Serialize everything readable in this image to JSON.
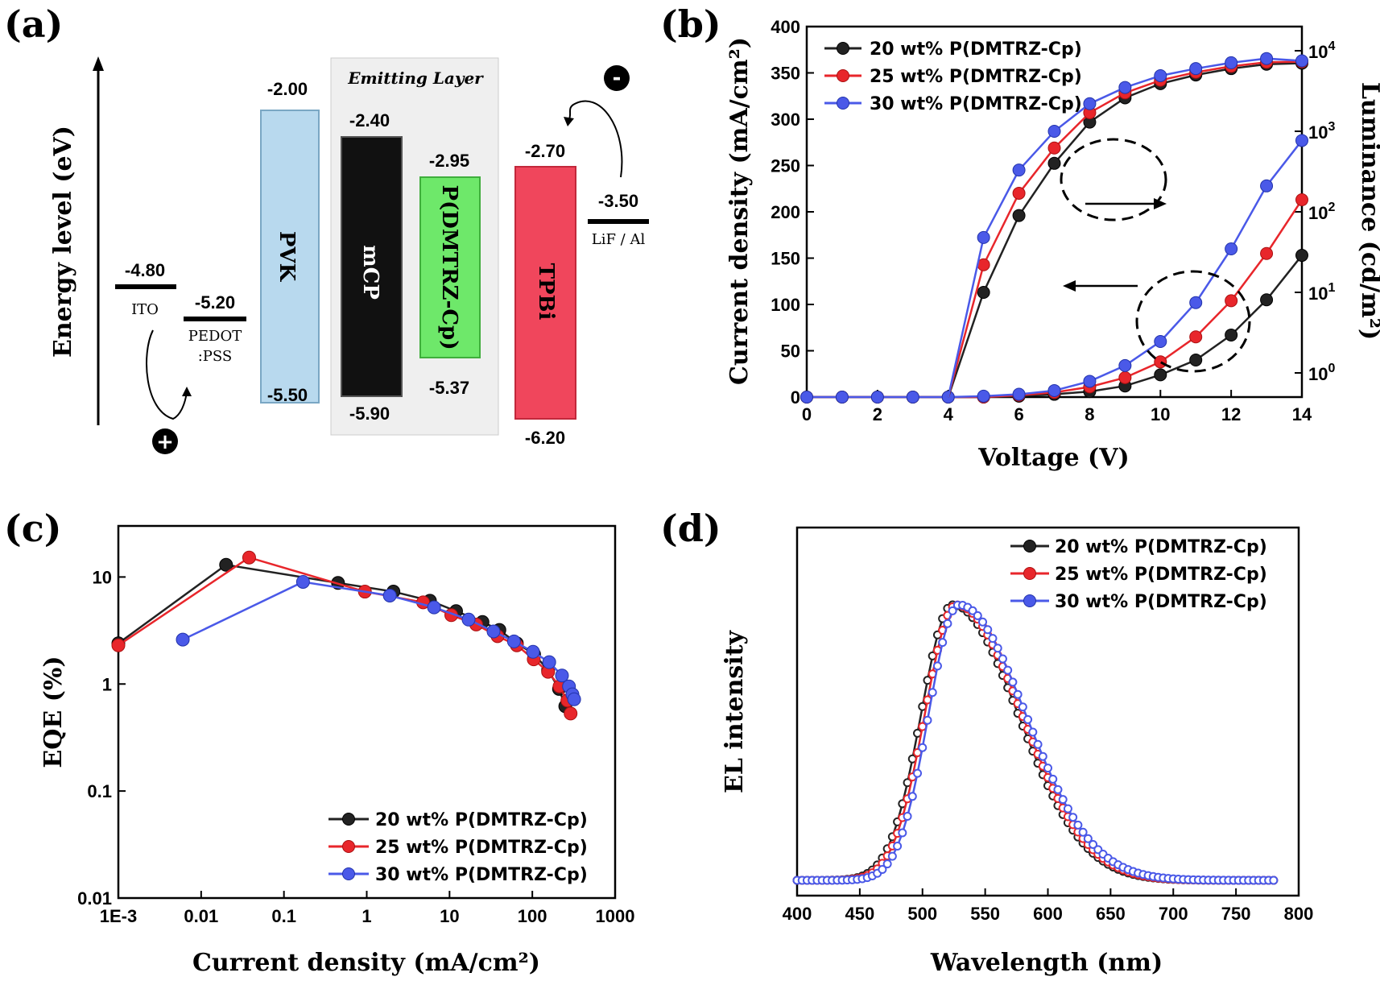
{
  "colors": {
    "black": "#222222",
    "red": "#e8262b",
    "blue": "#4a59e8",
    "pvk": "#b8d9ee",
    "mcp": "#111111",
    "emitter": "#6ee86a",
    "tpbi": "#f0465c",
    "eml_bg": "#efefef"
  },
  "panel_a": {
    "label": "(a)",
    "ylabel": "Energy level (eV)",
    "emitting_layer_label": "Emitting Layer",
    "layers": [
      {
        "name": "ITO",
        "top": "-4.80"
      },
      {
        "name_line1": "PEDOT",
        "name_line2": ":PSS",
        "top": "-5.20"
      },
      {
        "name": "PVK",
        "top": "-2.00",
        "bottom": "-5.50"
      },
      {
        "name": "mCP",
        "top": "-2.40",
        "bottom": "-5.90"
      },
      {
        "name": "P(DMTRZ-Cp)",
        "top": "-2.95",
        "bottom": "-5.37"
      },
      {
        "name": "TPBi",
        "top": "-2.70",
        "bottom": "-6.20"
      },
      {
        "name": "LiF / Al",
        "top": "-3.50"
      }
    ],
    "plus_sign": "+",
    "minus_sign": "-"
  },
  "legend": [
    "20 wt% P(DMTRZ-Cp)",
    "25 wt% P(DMTRZ-Cp)",
    "30 wt% P(DMTRZ-Cp)"
  ],
  "chart_data": [
    {
      "panel": "(b)",
      "type": "line",
      "xlabel": "Voltage (V)",
      "ylabel": "Current density (mA/cm²)",
      "y2label": "Luminance (cd/m²)",
      "xlim": [
        0,
        14
      ],
      "ylim": [
        0,
        400
      ],
      "y2lim_log10": [
        -0.3,
        4.3
      ],
      "x_ticks": [
        "0",
        "2",
        "4",
        "6",
        "8",
        "10",
        "12",
        "14"
      ],
      "y_ticks": [
        "0",
        "50",
        "100",
        "150",
        "200",
        "250",
        "300",
        "350",
        "400"
      ],
      "y2_ticks": [
        {
          "base": "10",
          "exp": "0"
        },
        {
          "base": "10",
          "exp": "1"
        },
        {
          "base": "10",
          "exp": "2"
        },
        {
          "base": "10",
          "exp": "3"
        },
        {
          "base": "10",
          "exp": "4"
        }
      ],
      "x": [
        0,
        1,
        2,
        3,
        4,
        5,
        6,
        7,
        8,
        9,
        10,
        11,
        12,
        13,
        14
      ],
      "current_density": [
        {
          "name": "20 wt% P(DMTRZ-Cp)",
          "values": [
            0,
            0,
            0,
            0,
            0,
            0,
            1,
            3,
            6,
            12,
            24,
            40,
            67,
            105,
            153
          ]
        },
        {
          "name": "25 wt% P(DMTRZ-Cp)",
          "values": [
            0,
            0,
            0,
            0,
            0,
            0,
            2,
            5,
            11,
            21,
            38,
            65,
            104,
            155,
            213
          ]
        },
        {
          "name": "30 wt% P(DMTRZ-Cp)",
          "values": [
            0,
            0,
            0,
            0,
            0,
            1,
            3,
            7,
            17,
            34,
            60,
            102,
            160,
            228,
            277
          ]
        }
      ],
      "luminance_x": [
        4,
        5,
        6,
        7,
        8,
        9,
        10,
        11,
        12,
        13,
        14
      ],
      "luminance": [
        {
          "name": "20 wt% P(DMTRZ-Cp)",
          "values": [
            0.5,
            10,
            90,
            400,
            1300,
            2600,
            3900,
            5000,
            6000,
            6800,
            7000
          ]
        },
        {
          "name": "25 wt% P(DMTRZ-Cp)",
          "values": [
            0.5,
            22,
            170,
            620,
            1700,
            3000,
            4300,
            5400,
            6400,
            7200,
            7300
          ]
        },
        {
          "name": "30 wt% P(DMTRZ-Cp)",
          "values": [
            0.5,
            48,
            330,
            1000,
            2200,
            3500,
            4900,
            6000,
            7100,
            8000,
            7500
          ]
        }
      ]
    },
    {
      "panel": "(c)",
      "type": "line",
      "xlabel": "Current density (mA/cm²)",
      "ylabel": "EQE (%)",
      "xscale": "log",
      "yscale": "log",
      "xlim": [
        0.001,
        1000
      ],
      "ylim": [
        0.01,
        30
      ],
      "x_ticks": [
        "1E-3",
        "0.01",
        "0.1",
        "1",
        "10",
        "100",
        "1000"
      ],
      "y_ticks": [
        "0.01",
        "0.1",
        "1",
        "10"
      ],
      "series": [
        {
          "name": "20 wt% P(DMTRZ-Cp)",
          "x": [
            0.001,
            0.02,
            0.45,
            2.1,
            5.8,
            12,
            25,
            40,
            65,
            105,
            155,
            210,
            250
          ],
          "y": [
            2.4,
            13,
            8.8,
            7.3,
            6.0,
            4.8,
            3.8,
            3.2,
            2.4,
            1.9,
            1.35,
            0.9,
            0.62
          ]
        },
        {
          "name": "25 wt% P(DMTRZ-Cp)",
          "x": [
            0.001,
            0.038,
            0.95,
            4.8,
            10.5,
            21,
            38,
            65,
            104,
            155,
            213,
            265,
            290
          ],
          "y": [
            2.3,
            15.2,
            7.3,
            5.8,
            4.4,
            3.6,
            2.8,
            2.3,
            1.7,
            1.3,
            0.95,
            0.7,
            0.53
          ]
        },
        {
          "name": "30 wt% P(DMTRZ-Cp)",
          "x": [
            0.006,
            0.17,
            1.9,
            6.5,
            17,
            34,
            60,
            102,
            160,
            228,
            277,
            305,
            320
          ],
          "y": [
            2.6,
            9.0,
            6.7,
            5.2,
            4.0,
            3.1,
            2.5,
            2.0,
            1.6,
            1.2,
            0.95,
            0.8,
            0.72
          ]
        }
      ]
    },
    {
      "panel": "(d)",
      "type": "line",
      "xlabel": "Wavelength (nm)",
      "ylabel": "EL intensity",
      "xlim": [
        400,
        800
      ],
      "x_ticks": [
        "400",
        "450",
        "500",
        "550",
        "600",
        "650",
        "700",
        "750",
        "800"
      ],
      "y_ticks": [],
      "series": [
        {
          "name": "20 wt% P(DMTRZ-Cp)",
          "peak_nm": 524,
          "sigma_left": 25,
          "sigma_right": 52,
          "baseline": 0.02
        },
        {
          "name": "25 wt% P(DMTRZ-Cp)",
          "peak_nm": 527,
          "sigma_left": 25,
          "sigma_right": 52,
          "baseline": 0.02
        },
        {
          "name": "30 wt% P(DMTRZ-Cp)",
          "peak_nm": 529,
          "sigma_left": 24,
          "sigma_right": 53,
          "baseline": 0.02
        }
      ]
    }
  ]
}
